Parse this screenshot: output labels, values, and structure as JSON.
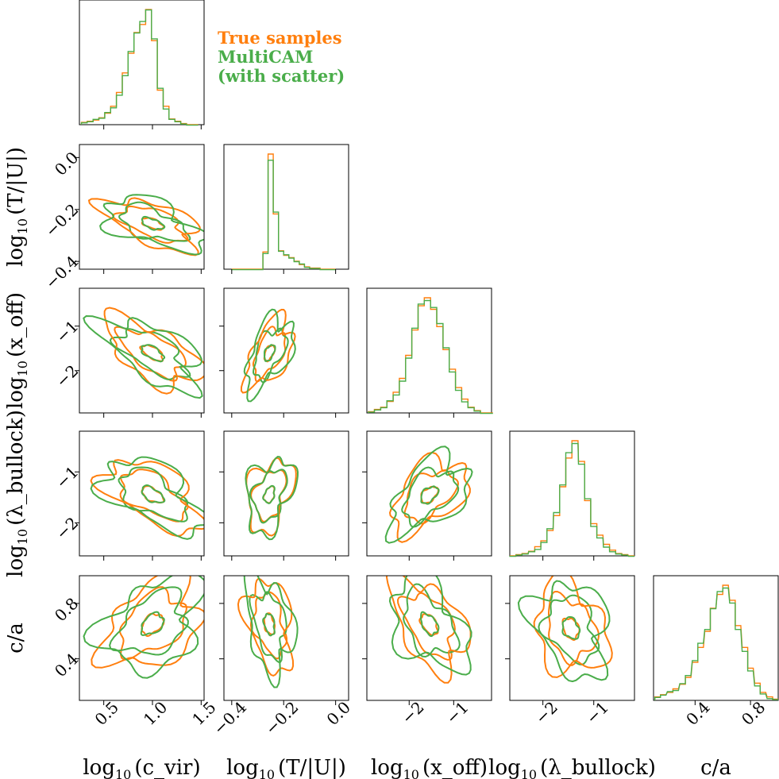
{
  "chart_data": {
    "type": "corner",
    "variables": [
      {
        "name": "log10(c_vir)",
        "label_main": "log",
        "label_sub": "10",
        "label_tail": "(c_vir)",
        "ticks": [
          0.5,
          1.0,
          1.5
        ],
        "tick_labels": [
          "0.5",
          "1.0",
          "1.5"
        ],
        "range": [
          0.25,
          1.53
        ]
      },
      {
        "name": "log10(T/|U|)",
        "label_main": "log",
        "label_sub": "10",
        "label_tail": "(T/|U|)",
        "ticks": [
          -0.4,
          -0.2,
          0.0
        ],
        "tick_labels": [
          "−0.4",
          "−0.2",
          "0.0"
        ],
        "range": [
          -0.43,
          0.05
        ]
      },
      {
        "name": "log10(x_off)",
        "label_main": "log",
        "label_sub": "10",
        "label_tail": "(x_off)",
        "ticks": [
          -2,
          -1
        ],
        "tick_labels": [
          "−2",
          "−1"
        ],
        "range": [
          -2.95,
          -0.15
        ]
      },
      {
        "name": "log10(lambda_bullock)",
        "label_main": "log",
        "label_sub": "10",
        "label_tail": "(λ_bullock)",
        "ticks": [
          -2,
          -1
        ],
        "tick_labels": [
          "−2",
          "−1"
        ],
        "range": [
          -2.65,
          -0.2
        ]
      },
      {
        "name": "c/a",
        "label_main": "c/a",
        "label_sub": "",
        "label_tail": "",
        "ticks": [
          0.4,
          0.8
        ],
        "tick_labels": [
          "0.4",
          "0.8"
        ],
        "range": [
          0.1,
          1.0
        ]
      }
    ],
    "series": [
      {
        "name": "True samples",
        "color": "#ff7f0e"
      },
      {
        "name": "MultiCAM (with scatter)",
        "color": "#4aad4a"
      }
    ],
    "marginals": [
      {
        "bins_center": [
          0.3,
          0.36,
          0.42,
          0.48,
          0.54,
          0.6,
          0.66,
          0.72,
          0.78,
          0.84,
          0.9,
          0.96,
          1.02,
          1.08,
          1.14,
          1.2,
          1.26,
          1.32,
          1.38,
          1.44
        ],
        "true": [
          0.02,
          0.03,
          0.04,
          0.06,
          0.1,
          0.16,
          0.28,
          0.45,
          0.62,
          0.8,
          0.87,
          1.0,
          0.73,
          0.3,
          0.16,
          0.05,
          0.03,
          0.01,
          0.0,
          0.0
        ],
        "model": [
          0.02,
          0.03,
          0.05,
          0.06,
          0.11,
          0.15,
          0.26,
          0.43,
          0.64,
          0.8,
          0.9,
          1.0,
          0.75,
          0.32,
          0.14,
          0.05,
          0.03,
          0.01,
          0.0,
          0.0
        ]
      },
      {
        "bins_center": [
          -0.39,
          -0.37,
          -0.35,
          -0.33,
          -0.31,
          -0.29,
          -0.27,
          -0.25,
          -0.23,
          -0.21,
          -0.19,
          -0.17,
          -0.15,
          -0.13,
          -0.11,
          -0.09,
          -0.07,
          -0.05,
          -0.03,
          -0.01
        ],
        "true": [
          0,
          0,
          0,
          0,
          0,
          0.0,
          0.15,
          1.0,
          0.48,
          0.16,
          0.12,
          0.1,
          0.07,
          0.04,
          0.02,
          0.01,
          0.01,
          0.0,
          0,
          0
        ],
        "model": [
          0,
          0,
          0,
          0,
          0,
          0.0,
          0.14,
          0.95,
          0.5,
          0.16,
          0.13,
          0.1,
          0.07,
          0.05,
          0.02,
          0.01,
          0.01,
          0.0,
          0,
          0
        ]
      },
      {
        "bins_center": [
          -2.85,
          -2.71,
          -2.57,
          -2.43,
          -2.29,
          -2.15,
          -2.01,
          -1.87,
          -1.73,
          -1.59,
          -1.45,
          -1.31,
          -1.17,
          -1.03,
          -0.89,
          -0.75,
          -0.61,
          -0.47,
          -0.33,
          -0.19
        ],
        "true": [
          0.01,
          0.03,
          0.05,
          0.1,
          0.18,
          0.3,
          0.5,
          0.72,
          0.93,
          1.0,
          0.9,
          0.75,
          0.55,
          0.38,
          0.22,
          0.12,
          0.05,
          0.02,
          0.0,
          0.0
        ],
        "model": [
          0.01,
          0.03,
          0.05,
          0.11,
          0.16,
          0.28,
          0.48,
          0.74,
          0.95,
          0.98,
          0.92,
          0.78,
          0.57,
          0.36,
          0.2,
          0.1,
          0.05,
          0.02,
          0.0,
          0.0
        ]
      },
      {
        "bins_center": [
          -2.59,
          -2.47,
          -2.35,
          -2.22,
          -2.1,
          -1.98,
          -1.86,
          -1.73,
          -1.61,
          -1.49,
          -1.37,
          -1.24,
          -1.12,
          -1.0,
          -0.88,
          -0.75,
          -0.63,
          -0.51,
          -0.39,
          -0.26
        ],
        "true": [
          0.0,
          0.01,
          0.02,
          0.04,
          0.08,
          0.13,
          0.22,
          0.35,
          0.6,
          0.85,
          1.0,
          0.82,
          0.48,
          0.28,
          0.18,
          0.1,
          0.05,
          0.02,
          0.01,
          0.0
        ],
        "model": [
          0.0,
          0.01,
          0.02,
          0.04,
          0.06,
          0.12,
          0.24,
          0.38,
          0.62,
          0.9,
          0.98,
          0.8,
          0.5,
          0.26,
          0.16,
          0.08,
          0.04,
          0.02,
          0.01,
          0.0
        ]
      },
      {
        "bins_center": [
          0.13,
          0.17,
          0.22,
          0.26,
          0.31,
          0.35,
          0.4,
          0.44,
          0.49,
          0.53,
          0.58,
          0.62,
          0.67,
          0.71,
          0.76,
          0.8,
          0.85,
          0.89,
          0.94,
          0.98
        ],
        "true": [
          0.03,
          0.05,
          0.07,
          0.1,
          0.14,
          0.2,
          0.33,
          0.46,
          0.6,
          0.8,
          0.92,
          1.0,
          0.87,
          0.65,
          0.46,
          0.28,
          0.15,
          0.07,
          0.03,
          0.01
        ],
        "model": [
          0.03,
          0.05,
          0.08,
          0.09,
          0.15,
          0.22,
          0.35,
          0.5,
          0.62,
          0.8,
          0.95,
          0.98,
          0.85,
          0.62,
          0.43,
          0.26,
          0.13,
          0.06,
          0.02,
          0.01
        ]
      }
    ],
    "pairs": [
      {
        "row": 1,
        "col": 0,
        "center": [
          1.0,
          -0.255
        ],
        "sd": [
          0.22,
          0.045
        ],
        "rho": -0.55
      },
      {
        "row": 2,
        "col": 0,
        "center": [
          1.0,
          -1.6
        ],
        "sd": [
          0.22,
          0.35
        ],
        "rho": -0.6
      },
      {
        "row": 2,
        "col": 1,
        "center": [
          -0.255,
          -1.6
        ],
        "sd": [
          0.04,
          0.35
        ],
        "rho": 0.5
      },
      {
        "row": 3,
        "col": 0,
        "center": [
          1.0,
          -1.45
        ],
        "sd": [
          0.22,
          0.32
        ],
        "rho": -0.55
      },
      {
        "row": 3,
        "col": 1,
        "center": [
          -0.255,
          -1.45
        ],
        "sd": [
          0.04,
          0.32
        ],
        "rho": 0.35
      },
      {
        "row": 3,
        "col": 2,
        "center": [
          -1.55,
          -1.45
        ],
        "sd": [
          0.38,
          0.32
        ],
        "rho": 0.45
      },
      {
        "row": 4,
        "col": 0,
        "center": [
          1.0,
          0.65
        ],
        "sd": [
          0.22,
          0.15
        ],
        "rho": 0.35
      },
      {
        "row": 4,
        "col": 1,
        "center": [
          -0.255,
          0.65
        ],
        "sd": [
          0.04,
          0.15
        ],
        "rho": -0.3
      },
      {
        "row": 4,
        "col": 2,
        "center": [
          -1.55,
          0.65
        ],
        "sd": [
          0.38,
          0.15
        ],
        "rho": -0.45
      },
      {
        "row": 4,
        "col": 3,
        "center": [
          -1.45,
          0.62
        ],
        "sd": [
          0.32,
          0.15
        ],
        "rho": -0.25
      }
    ],
    "contour_levels_sigma": [
      0.5,
      1.5,
      2.2
    ],
    "legend": {
      "placement": "top-right of first panel",
      "lines": [
        "True samples",
        "MultiCAM",
        "(with scatter)"
      ]
    }
  }
}
